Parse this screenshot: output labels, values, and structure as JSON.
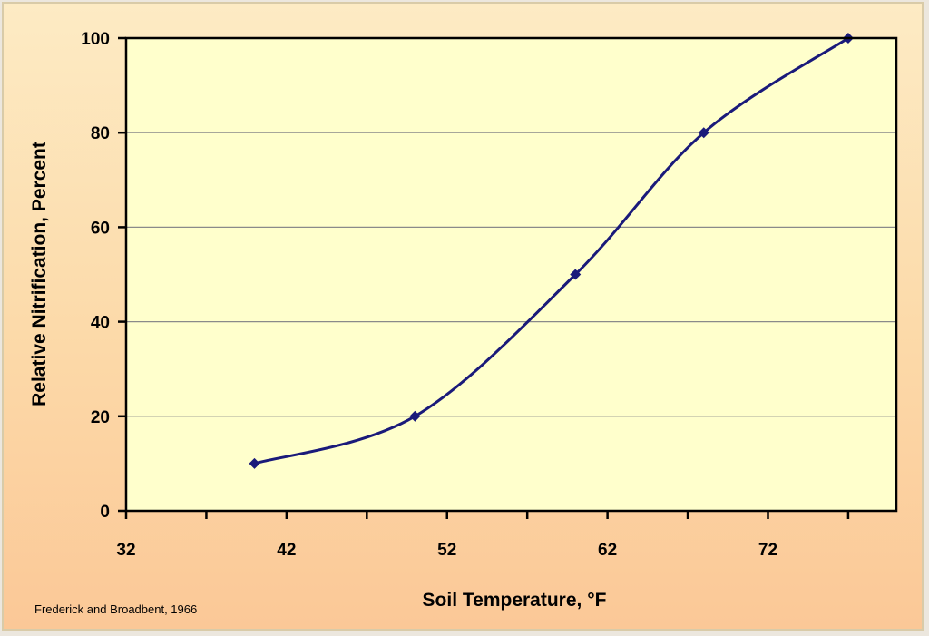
{
  "chart_data": {
    "type": "line",
    "title": "",
    "xlabel": "Soil Temperature, °F",
    "ylabel": "Relative Nitrification, Percent",
    "x": [
      40,
      50,
      60,
      68,
      77
    ],
    "series": [
      {
        "name": "Relative Nitrification",
        "values": [
          10,
          20,
          50,
          80,
          100
        ],
        "color": "#1a1a7a"
      }
    ],
    "xlim": [
      32,
      80
    ],
    "ylim": [
      0,
      100
    ],
    "xticks": [
      "32",
      "42",
      "52",
      "62",
      "72"
    ],
    "yticks": [
      "0",
      "20",
      "40",
      "60",
      "80",
      "100"
    ],
    "grid": "horizontal",
    "source": "Frederick and Broadbent, 1966",
    "colors": {
      "plot_bg": "#ffffcc",
      "line": "#1a1a7a",
      "grid": "#8a8a8a"
    }
  }
}
